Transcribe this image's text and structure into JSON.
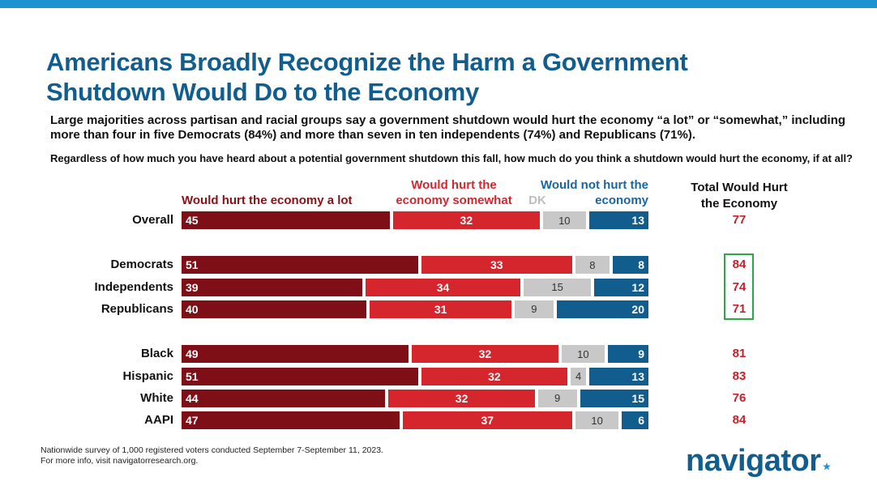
{
  "chart_data": {
    "type": "bar",
    "orientation": "horizontal",
    "stacked": true,
    "title": "Americans Broadly Recognize the Harm a Government Shutdown Would Do to the Economy",
    "subtitle": "Large majorities across partisan and racial groups say a government shutdown would hurt the economy “a lot” or “somewhat,” including more than four in five Democrats (84%) and more than seven in ten independents (74%) and Republicans (71%).",
    "question": "Regardless of how much you have heard about a potential government shutdown this fall, how much do you think a shutdown would hurt the economy, if at all?",
    "categories": [
      "Overall",
      "Democrats",
      "Independents",
      "Republicans",
      "Black",
      "Hispanic",
      "White",
      "AAPI"
    ],
    "series": [
      {
        "name": "Would hurt the economy a lot",
        "color": "#7f0f16",
        "values": [
          45,
          51,
          39,
          40,
          49,
          51,
          44,
          47
        ]
      },
      {
        "name": "Would hurt the economy somewhat",
        "color": "#d5262e",
        "values": [
          32,
          33,
          34,
          31,
          32,
          32,
          32,
          37
        ]
      },
      {
        "name": "DK",
        "color": "#c8c8c8",
        "values": [
          10,
          8,
          15,
          9,
          10,
          4,
          9,
          10
        ]
      },
      {
        "name": "Would not hurt the economy",
        "color": "#115d8d",
        "values": [
          13,
          8,
          12,
          20,
          9,
          13,
          15,
          6
        ]
      }
    ],
    "total": {
      "title": "Total Would Hurt the Economy",
      "values": [
        77,
        84,
        74,
        71,
        81,
        83,
        76,
        84
      ]
    }
  },
  "footer": {
    "notes": [
      "Nationwide survey of 1,000 registered voters conducted September 7-September 11, 2023.",
      "For more info, visit navigatorresearch.org."
    ],
    "logo": "navigator"
  }
}
